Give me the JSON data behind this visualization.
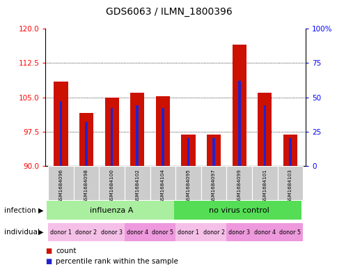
{
  "title": "GDS6063 / ILMN_1800396",
  "samples": [
    "GSM1684096",
    "GSM1684098",
    "GSM1684100",
    "GSM1684102",
    "GSM1684104",
    "GSM1684095",
    "GSM1684097",
    "GSM1684099",
    "GSM1684101",
    "GSM1684103"
  ],
  "counts": [
    108.5,
    101.5,
    105.0,
    106.0,
    105.2,
    96.8,
    96.8,
    116.5,
    106.0,
    96.8
  ],
  "percentiles": [
    47,
    32,
    42,
    44,
    42,
    20,
    20,
    62,
    44,
    20
  ],
  "ylim_left": [
    90,
    120
  ],
  "ylim_right": [
    0,
    100
  ],
  "yticks_left": [
    90,
    97.5,
    105,
    112.5,
    120
  ],
  "yticks_right": [
    0,
    25,
    50,
    75,
    100
  ],
  "infection_groups": [
    {
      "label": "influenza A",
      "start": 0,
      "end": 5,
      "color": "#aaeea0"
    },
    {
      "label": "no virus control",
      "start": 5,
      "end": 10,
      "color": "#55dd55"
    }
  ],
  "individual_labels": [
    "donor 1",
    "donor 2",
    "donor 3",
    "donor 4",
    "donor 5",
    "donor 1",
    "donor 2",
    "donor 3",
    "donor 4",
    "donor 5"
  ],
  "individual_colors": [
    "#f5c0e8",
    "#f5c0e8",
    "#f5c0e8",
    "#ee99dd",
    "#ee99dd",
    "#f5c0e8",
    "#f5c0e8",
    "#ee99dd",
    "#ee99dd",
    "#ee99dd"
  ],
  "bar_color": "#cc1100",
  "blue_color": "#2222cc",
  "bar_width": 0.55,
  "grid_color": "black",
  "label_area_bg": "#cccccc"
}
